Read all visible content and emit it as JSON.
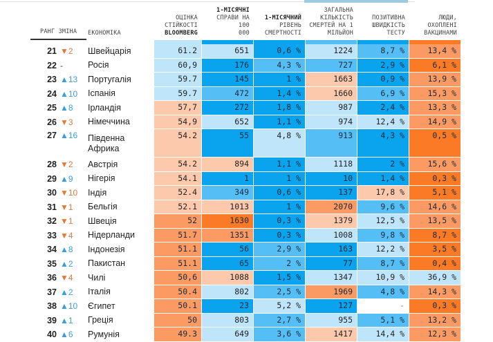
{
  "header": {
    "rank": "РАНГ",
    "change": "ЗМІНА",
    "economy": "ЕКОНОМІКА",
    "bloomberg_l1": "ОЦІНКА",
    "bloomberg_l2": "СТІЙКОСТІ",
    "bloomberg_l3": "BLOOMBERG",
    "cases_l1": "1-МІСЯЧНІ",
    "cases_l2": "СПРАВИ НА 100",
    "cases_l3": "000",
    "mort_l1": "1-МІСЯЧНИЙ",
    "mort_l2": "РІВЕНЬ",
    "mort_l3": "СМЕРТНОСТІ",
    "deaths_l1": "ЗАГАЛЬНА",
    "deaths_l2": "КІЛЬКІСТЬ",
    "deaths_l3": "СМЕРТЕЙ НА 1",
    "deaths_l4": "МІЛЬЙОН",
    "pos_l1": "ПОЗИТИВНА",
    "pos_l2": "ШВИДКІСТЬ",
    "pos_l3": "ТЕСТУ",
    "vac_l1": "ЛЮДИ, ОХОПЛЕНІ",
    "vac_l2": "ВАКЦИНАМИ"
  },
  "colors": {
    "lightblue": "#bfe5fb",
    "midblue": "#55bff5",
    "blue": "#0aa3ee",
    "peach": "#fcc9ac",
    "orange": "#fb9a63",
    "darkorange": "#fb7a26",
    "up": "#3a9fd8",
    "down": "#e07b39"
  },
  "header_bar_colors": [
    "lightblue",
    "blue",
    "blue",
    "midblue",
    "blue",
    "darkorange"
  ],
  "rows": [
    {
      "rank": "21",
      "dir": "down",
      "change": "▼2",
      "name": "Швейцарія",
      "vals": [
        "61.2",
        "651",
        "0,6 %",
        "1224",
        "8,7 %",
        "13,4 %"
      ],
      "c": [
        "lightblue",
        "lightblue",
        "blue",
        "lightblue",
        "midblue",
        "orange"
      ]
    },
    {
      "rank": "22",
      "dir": "flat",
      "change": "-",
      "name": "Росія",
      "vals": [
        "60,9",
        "176",
        "4,3 %",
        "727",
        "2,9 %",
        "6,1 %"
      ],
      "c": [
        "lightblue",
        "blue",
        "midblue",
        "midblue",
        "blue",
        "darkorange"
      ]
    },
    {
      "rank": "23",
      "dir": "up",
      "change": "▲13",
      "name": "Португалія",
      "vals": [
        "59.7",
        "145",
        "1 %",
        "1663",
        "0,9 %",
        "13,9 %"
      ],
      "c": [
        "lightblue",
        "blue",
        "blue",
        "peach",
        "blue",
        "orange"
      ]
    },
    {
      "rank": "24",
      "dir": "up",
      "change": "▲10",
      "name": "Іспанія",
      "vals": [
        "59.7",
        "472",
        "1,4 %",
        "1660",
        "6,9 %",
        "15,3 %"
      ],
      "c": [
        "lightblue",
        "midblue",
        "blue",
        "peach",
        "midblue",
        "orange"
      ]
    },
    {
      "rank": "25",
      "dir": "up",
      "change": "▲8",
      "name": "Ірландія",
      "vals": [
        "57,7",
        "272",
        "1,8 %",
        "987",
        "2,4 %",
        "13,3 %"
      ],
      "c": [
        "peach",
        "blue",
        "blue",
        "lightblue",
        "blue",
        "orange"
      ]
    },
    {
      "rank": "26",
      "dir": "down",
      "change": "▼3",
      "name": "Німеччина",
      "vals": [
        "54,9",
        "652",
        "1,1 %",
        "974",
        "12,4 %",
        "14,9 %"
      ],
      "c": [
        "peach",
        "lightblue",
        "blue",
        "lightblue",
        "lightblue",
        "orange"
      ]
    },
    {
      "rank": "27",
      "dir": "up",
      "change": "▲16",
      "name": "Південна Африка",
      "vals": [
        "54.2",
        "55",
        "4,8 %",
        "913",
        "4,3 %",
        "0,5 %"
      ],
      "c": [
        "peach",
        "blue",
        "lightblue",
        "midblue",
        "blue",
        "darkorange"
      ],
      "tall": true
    },
    {
      "rank": "28",
      "dir": "down",
      "change": "▼2",
      "name": "Австрія",
      "vals": [
        "54.2",
        "894",
        "1,1 %",
        "1118",
        "2 %",
        "15,6 %"
      ],
      "c": [
        "peach",
        "peach",
        "blue",
        "lightblue",
        "blue",
        "orange"
      ]
    },
    {
      "rank": "29",
      "dir": "up",
      "change": "▲9",
      "name": "Нігерія",
      "vals": [
        "54.1",
        "1",
        "1 %",
        "10",
        "1,4 %",
        "0,3 %"
      ],
      "c": [
        "peach",
        "blue",
        "blue",
        "blue",
        "blue",
        "darkorange"
      ]
    },
    {
      "rank": "30",
      "dir": "down",
      "change": "▼10",
      "name": "Індія",
      "vals": [
        "52.4",
        "349",
        "0,6 %",
        "137",
        "17,8 %",
        "5,1 %"
      ],
      "c": [
        "peach",
        "midblue",
        "blue",
        "blue",
        "peach",
        "darkorange"
      ]
    },
    {
      "rank": "31",
      "dir": "down",
      "change": "▼1",
      "name": "Бельгія",
      "vals": [
        "52.1",
        "1013",
        "1 %",
        "2070",
        "9,6 %",
        "14,6 %"
      ],
      "c": [
        "peach",
        "peach",
        "blue",
        "orange",
        "midblue",
        "orange"
      ]
    },
    {
      "rank": "32",
      "dir": "down",
      "change": "▼1",
      "name": "Швеція",
      "vals": [
        "52",
        "1630",
        "0,3 %",
        "1379",
        "12,5 %",
        "13,5 %"
      ],
      "c": [
        "orange",
        "darkorange",
        "blue",
        "peach",
        "lightblue",
        "orange"
      ]
    },
    {
      "rank": "33",
      "dir": "down",
      "change": "▼4",
      "name": "Нідерланди",
      "vals": [
        "51.7",
        "1351",
        "0,3 %",
        "1008",
        "9,8 %",
        "8,7 %"
      ],
      "c": [
        "orange",
        "orange",
        "blue",
        "lightblue",
        "midblue",
        "darkorange"
      ]
    },
    {
      "rank": "34",
      "dir": "up",
      "change": "▲8",
      "name": "Індонезія",
      "vals": [
        "51.1",
        "56",
        "2,9 %",
        "163",
        "12,2 %",
        "3,5 %"
      ],
      "c": [
        "orange",
        "blue",
        "midblue",
        "blue",
        "lightblue",
        "darkorange"
      ]
    },
    {
      "rank": "35",
      "dir": "up",
      "change": "▲2",
      "name": "Пакистан",
      "vals": [
        "51.1",
        "65",
        "2 %",
        "77",
        "8,7 %",
        "0,4 %"
      ],
      "c": [
        "orange",
        "blue",
        "midblue",
        "blue",
        "midblue",
        "darkorange"
      ]
    },
    {
      "rank": "36",
      "dir": "down",
      "change": "▼4",
      "name": "Чилі",
      "vals": [
        "50,6",
        "1088",
        "1,5 %",
        "1347",
        "10,9 %",
        "36,9 %"
      ],
      "c": [
        "orange",
        "peach",
        "blue",
        "lightblue",
        "lightblue",
        "lightblue"
      ]
    },
    {
      "rank": "37",
      "dir": "up",
      "change": "▲2",
      "name": "Італія",
      "vals": [
        "50.4",
        "802",
        "2,5 %",
        "1969",
        "4,8 %",
        "14,3 %"
      ],
      "c": [
        "orange",
        "lightblue",
        "midblue",
        "orange",
        "midblue",
        "orange"
      ]
    },
    {
      "rank": "38",
      "dir": "up",
      "change": "▲10",
      "name": "Єгипет",
      "vals": [
        "50.1",
        "23",
        "5,2 %",
        "127",
        "-",
        "0,3 %"
      ],
      "c": [
        "orange",
        "blue",
        "lightblue",
        "blue",
        "white",
        "darkorange"
      ]
    },
    {
      "rank": "39",
      "dir": "up",
      "change": "▲1",
      "name": "Греція",
      "vals": [
        "50",
        "803",
        "2,7 %",
        "955",
        "5,1 %",
        "13,2 %"
      ],
      "c": [
        "orange",
        "lightblue",
        "midblue",
        "lightblue",
        "midblue",
        "orange"
      ]
    },
    {
      "rank": "40",
      "dir": "up",
      "change": "▲6",
      "name": "Румунія",
      "vals": [
        "49.3",
        "649",
        "3,6 %",
        "1417",
        "14,4 %",
        "12,3 %"
      ],
      "c": [
        "orange",
        "lightblue",
        "midblue",
        "peach",
        "lightblue",
        "orange"
      ]
    }
  ]
}
